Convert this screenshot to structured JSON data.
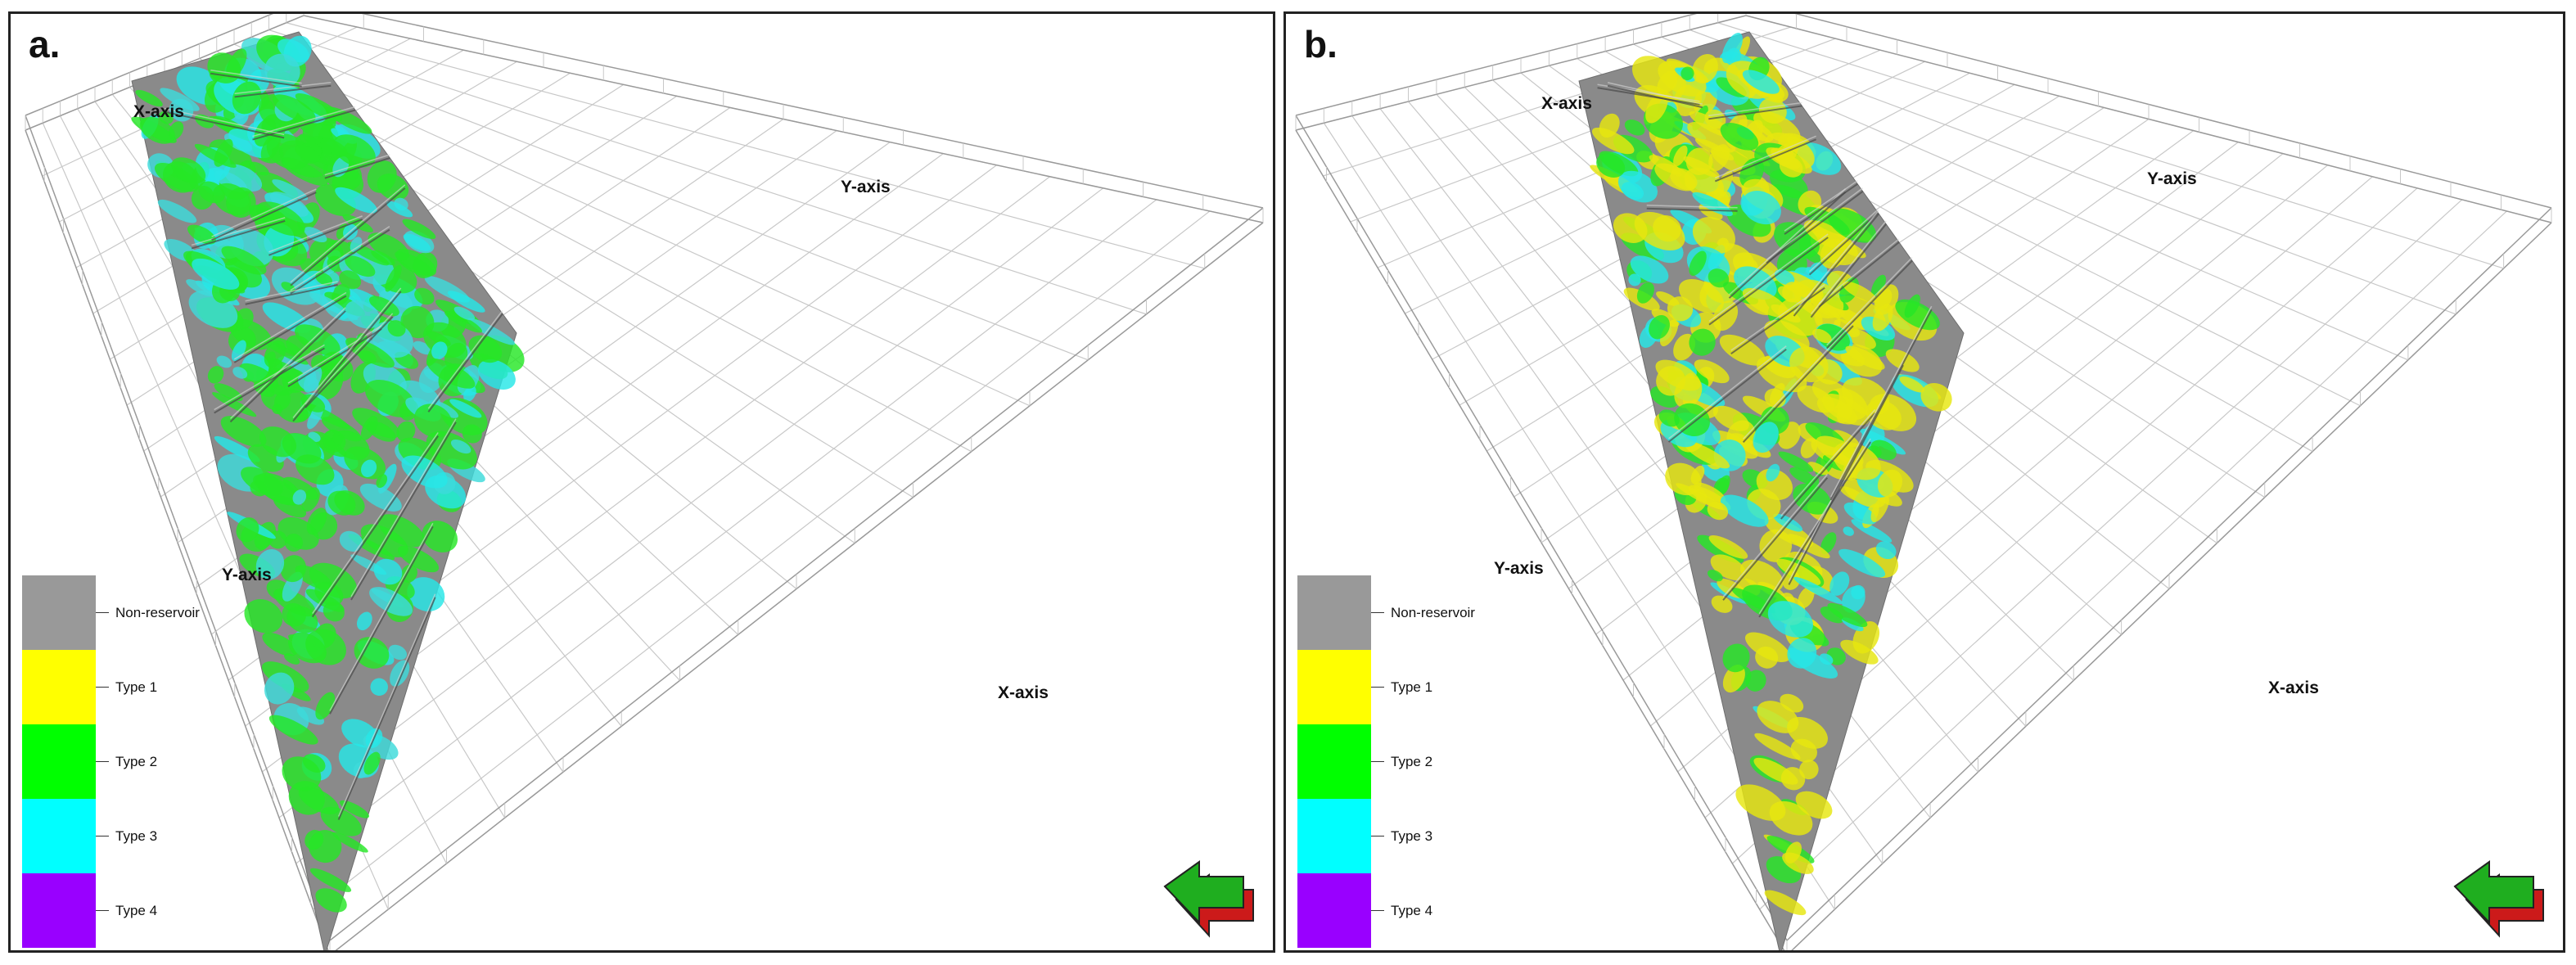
{
  "panels": [
    {
      "id": "a",
      "label": "a.",
      "axis_labels": {
        "x_top": "X-axis",
        "y_top": "Y-axis",
        "y_left": "Y-axis",
        "x_right": "X-axis"
      },
      "facies_colors": [
        "#26e626",
        "#26e6e6",
        "#26e626",
        "#26e626",
        "#3ddada"
      ]
    },
    {
      "id": "b",
      "label": "b.",
      "axis_labels": {
        "x_top": "X-axis",
        "y_top": "Y-axis",
        "y_left": "Y-axis",
        "x_right": "X-axis"
      },
      "facies_colors": [
        "#e6e60f",
        "#26e6e6",
        "#e6e60f",
        "#26e626",
        "#e6e60f"
      ]
    }
  ],
  "legend": [
    {
      "label": "Non-reservoir",
      "color": "#999999"
    },
    {
      "label": "Type 1",
      "color": "#ffff00"
    },
    {
      "label": "Type 2",
      "color": "#00ff00"
    },
    {
      "label": "Type 3",
      "color": "#00ffff"
    },
    {
      "label": "Type 4",
      "color": "#9900ff"
    }
  ],
  "surface_color": "#8a8a8a",
  "grid_color": "#c8c8c8",
  "compass_icon": "north-arrow-icon"
}
